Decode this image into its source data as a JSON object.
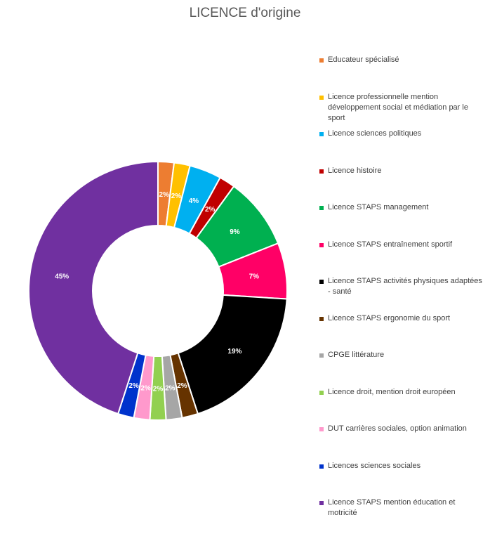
{
  "chart_data": {
    "type": "pie",
    "variant": "donut",
    "title": "LICENCE d'origine",
    "legend_position": "right",
    "categories": [
      "Educateur spécialisé",
      "Licence professionnelle mention développement social et médiation par le sport",
      "Licence sciences politiques",
      "Licence histoire",
      "Licence STAPS management",
      "Licence STAPS entraînement sportif",
      "Licence STAPS activités physiques adaptées - santé",
      "Licence STAPS ergonomie du sport",
      "CPGE littérature",
      "Licence droit, mention droit européen",
      "DUT carrières sociales, option animation",
      "Licences sciences sociales",
      "Licence STAPS mention éducation et motricité"
    ],
    "values": [
      2,
      2,
      4,
      2,
      9,
      7,
      19,
      2,
      2,
      2,
      2,
      2,
      45
    ],
    "data_labels": [
      "2%",
      "2%",
      "4%",
      "2%",
      "9%",
      "7%",
      "19%",
      "2%",
      "2%",
      "2%",
      "2%",
      "2%",
      "45%"
    ],
    "colors": [
      "#ED7D31",
      "#FFC000",
      "#00B0F0",
      "#C00000",
      "#00B050",
      "#FF0066",
      "#000000",
      "#663300",
      "#A6A6A6",
      "#92D050",
      "#FF99CC",
      "#0033CC",
      "#7030A0"
    ]
  }
}
